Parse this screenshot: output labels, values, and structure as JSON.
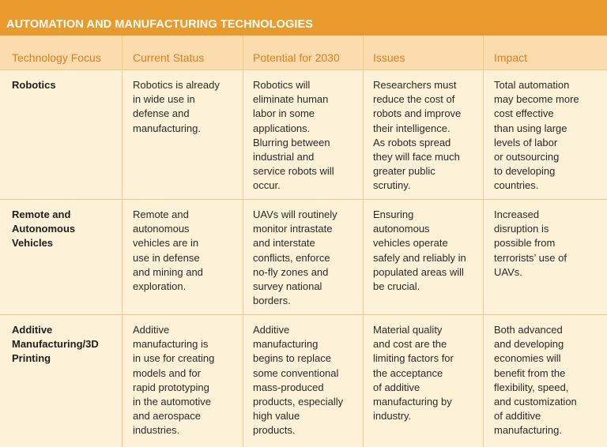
{
  "title": "AUTOMATION AND MANUFACTURING TECHNOLOGIES",
  "columns": [
    "Technology Focus",
    "Current Status",
    "Potential for 2030",
    "Issues",
    "Impact"
  ],
  "rows": [
    {
      "focus": "Robotics",
      "cells": [
        "Robotics is already\nin wide use in\ndefense and\nmanufacturing.",
        "Robotics will\neliminate human\nlabor in some\napplications.\nBlurring between\nindustrial and\nservice robots will\noccur.",
        "Researchers must\nreduce the cost of\nrobots and improve\ntheir intelligence.\nAs robots spread\nthey will face much\ngreater public\nscrutiny.",
        "Total automation\nmay become more\ncost effective\nthan using large\nlevels of labor\nor outsourcing\nto developing\ncountries."
      ]
    },
    {
      "focus": "Remote and\nAutonomous\nVehicles",
      "cells": [
        "Remote and\nautonomous\nvehicles are in\nuse in defense\nand mining and\nexploration.",
        "UAVs will routinely\nmonitor intrastate\nand interstate\nconflicts, enforce\nno-fly zones and\nsurvey national\nborders.",
        "Ensuring\nautonomous\nvehicles operate\nsafely and reliably in\npopulated areas will\nbe crucial.",
        "Increased\ndisruption is\npossible from\nterrorists’ use of\nUAVs."
      ]
    },
    {
      "focus": "Additive\nManufacturing/3D\nPrinting",
      "cells": [
        "Additive\nmanufacturing is\nin use for creating\nmodels and for\nrapid prototyping\nin the automotive\nand aerospace\nindustries.",
        "Additive\nmanufacturing\nbegins to replace\nsome conventional\nmass-produced\nproducts, especially\nhigh value\nproducts.",
        "Material quality\nand cost are the\nlimiting factors for\nthe acceptance\nof additive\nmanufacturing by\nindustry.",
        "Both advanced\nand developing\neconomies will\nbenefit from the\nflexibility, speed,\nand customization\nof additive\nmanufacturing."
      ]
    }
  ]
}
